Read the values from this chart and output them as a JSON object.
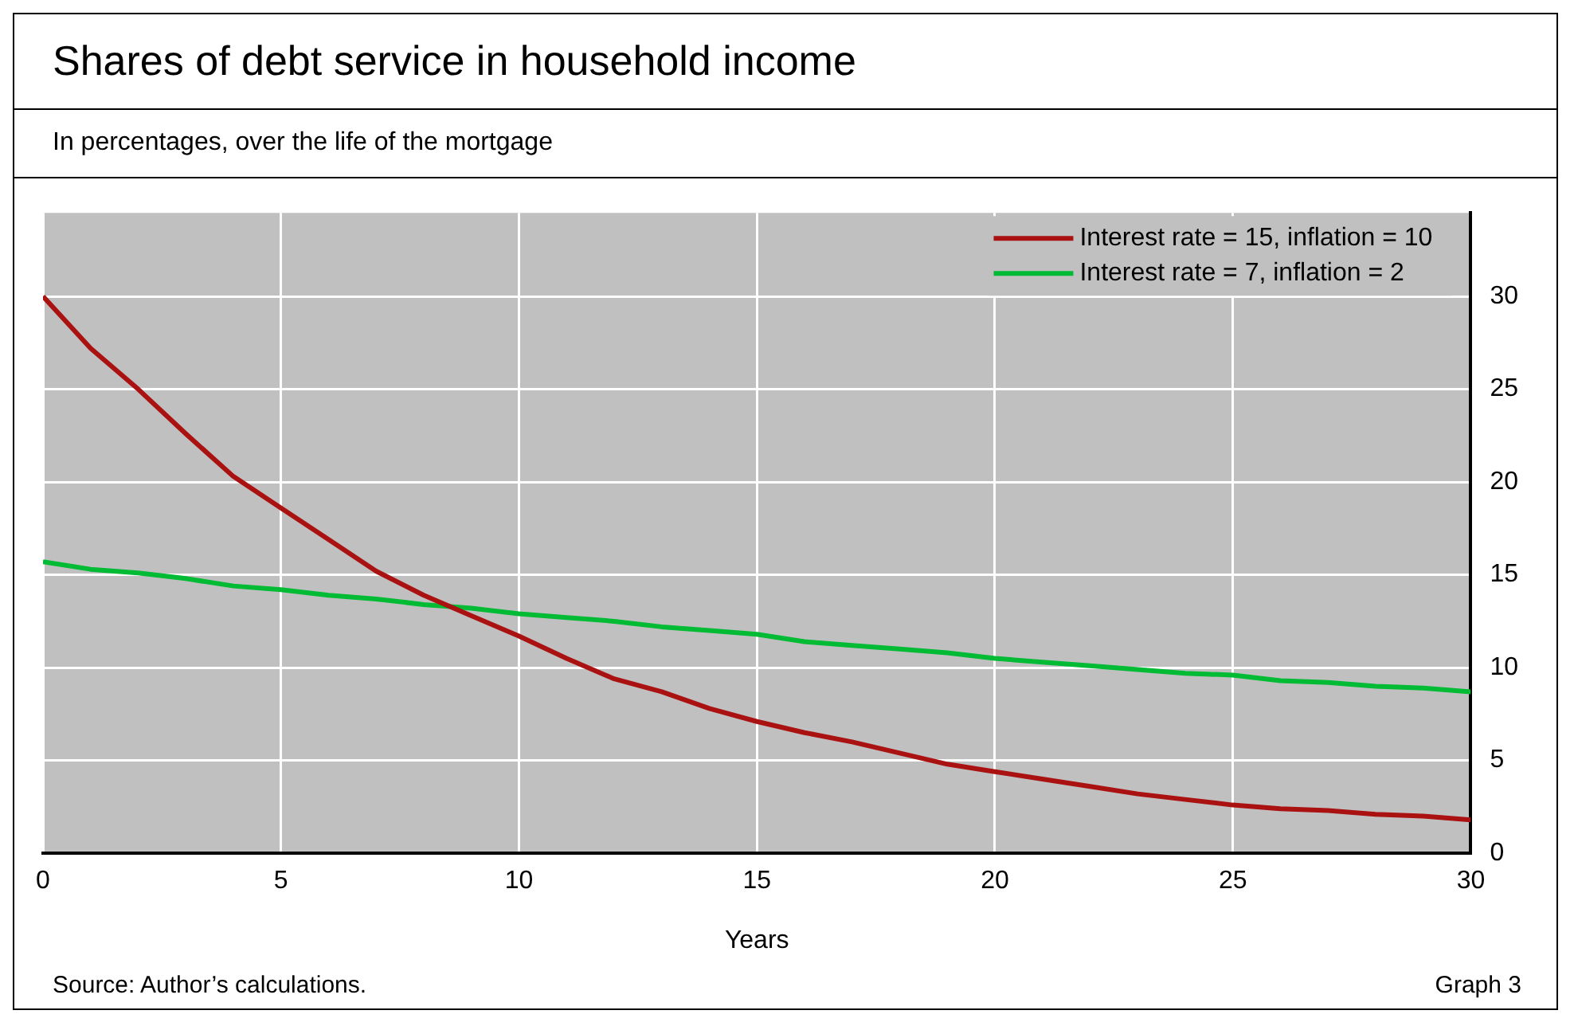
{
  "chart_data": {
    "type": "line",
    "title": "Shares of debt service in household income",
    "subtitle": "In percentages, over the life of the mortgage",
    "xlabel": "Years",
    "x": [
      0,
      1,
      2,
      3,
      4,
      5,
      6,
      7,
      8,
      9,
      10,
      11,
      12,
      13,
      14,
      15,
      16,
      17,
      18,
      19,
      20,
      21,
      22,
      23,
      24,
      25,
      26,
      27,
      28,
      29,
      30
    ],
    "series": [
      {
        "name": "Interest rate = 15, inflation = 10",
        "color": "#aa1111",
        "values": [
          30,
          27.2,
          25.0,
          22.6,
          20.3,
          18.6,
          16.9,
          15.2,
          13.9,
          12.8,
          11.7,
          10.5,
          9.4,
          8.7,
          7.8,
          7.1,
          6.5,
          6.0,
          5.4,
          4.8,
          4.4,
          4.0,
          3.6,
          3.2,
          2.9,
          2.6,
          2.4,
          2.3,
          2.1,
          2.0,
          1.8
        ]
      },
      {
        "name": "Interest rate = 7, inflation = 2",
        "color": "#00bb33",
        "values": [
          15.7,
          15.3,
          15.1,
          14.8,
          14.4,
          14.2,
          13.9,
          13.7,
          13.4,
          13.2,
          12.9,
          12.7,
          12.5,
          12.2,
          12.0,
          11.8,
          11.4,
          11.2,
          11.0,
          10.8,
          10.5,
          10.3,
          10.1,
          9.9,
          9.7,
          9.6,
          9.3,
          9.2,
          9.0,
          8.9,
          8.7
        ]
      }
    ],
    "xlim": [
      0,
      30
    ],
    "xticks": [
      0,
      5,
      10,
      15,
      20,
      25,
      30
    ],
    "ylim": [
      0,
      34.5
    ],
    "yticks": [
      0,
      5,
      10,
      15,
      20,
      25,
      30
    ],
    "grid": true,
    "legend": "top right",
    "marker": "none",
    "line_style": "solid",
    "annotations": [
      "Source: Author’s calculations.",
      "Graph 3"
    ]
  }
}
